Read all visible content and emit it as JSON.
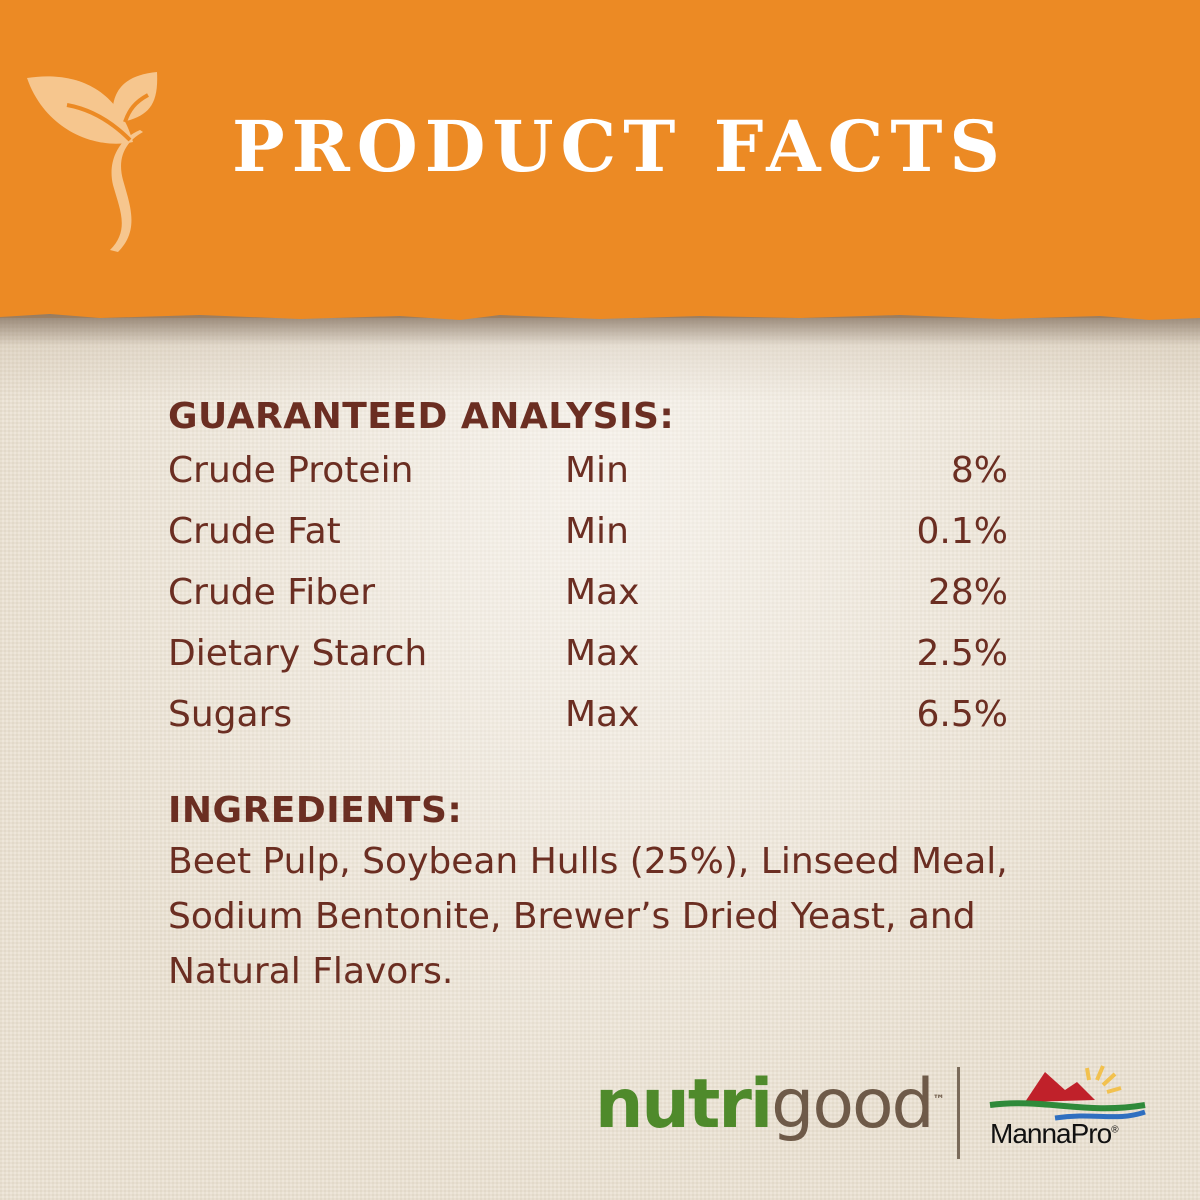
{
  "header": {
    "title": "PRODUCT FACTS",
    "icon": "sprout-icon",
    "color": "#ec8a24"
  },
  "analysis": {
    "heading": "GUARANTEED ANALYSIS:",
    "rows": [
      {
        "name": "Crude Protein",
        "qualifier": "Min",
        "value": "8%"
      },
      {
        "name": "Crude Fat",
        "qualifier": "Min",
        "value": "0.1%"
      },
      {
        "name": "Crude Fiber",
        "qualifier": "Max",
        "value": "28%"
      },
      {
        "name": "Dietary Starch",
        "qualifier": "Max",
        "value": "2.5%"
      },
      {
        "name": "Sugars",
        "qualifier": "Max",
        "value": "6.5%"
      }
    ]
  },
  "ingredients": {
    "heading": "INGREDIENTS:",
    "text": "Beet Pulp, Soybean Hulls (25%), Linseed Meal, Sodium Bentonite, Brewer’s Dried Yeast, and Natural Flavors."
  },
  "logos": {
    "nutri": "nutri",
    "good": "good",
    "trademark": "™",
    "mannapro": "MannaPro",
    "registered": "®"
  },
  "text_color": "#6b2e22"
}
